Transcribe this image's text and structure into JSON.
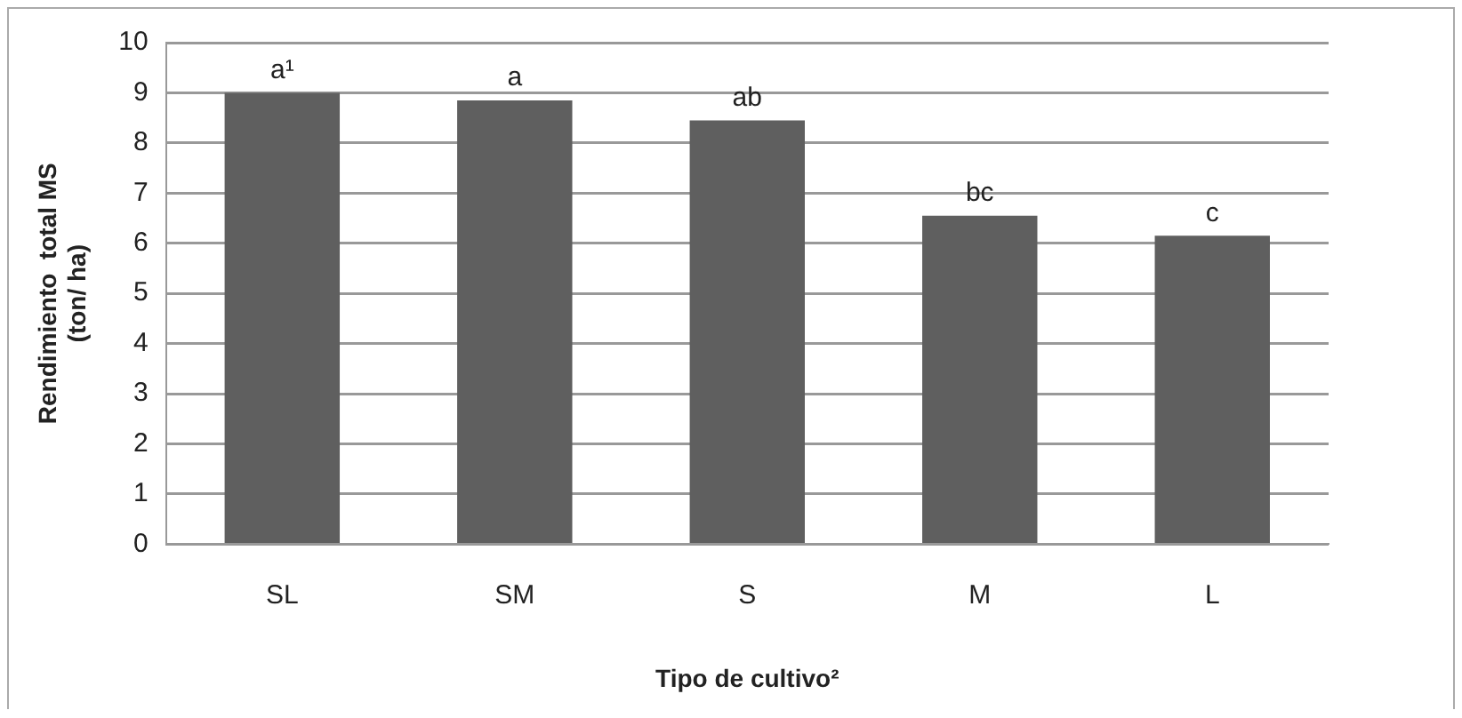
{
  "chart_data": {
    "type": "bar",
    "xlabel": "Tipo de cultivo²",
    "ylabel": "Rendimiento  total MS\n(ton/ ha)",
    "categories": [
      "SL",
      "SM",
      "S",
      "M",
      "L"
    ],
    "values": [
      9.0,
      8.85,
      8.45,
      6.55,
      6.15
    ],
    "color": "#5f5f5f",
    "ylim": [
      0,
      10
    ],
    "yticks": [
      0,
      1,
      2,
      3,
      4,
      5,
      6,
      7,
      8,
      9,
      10
    ],
    "grid": "y",
    "legend": false,
    "annotations": [
      {
        "text": "a¹",
        "x": "SL",
        "y": 9.0
      },
      {
        "text": "a",
        "x": "SM",
        "y": 8.85
      },
      {
        "text": "ab",
        "x": "S",
        "y": 8.45
      },
      {
        "text": "bc",
        "x": "M",
        "y": 6.55
      },
      {
        "text": "c",
        "x": "L",
        "y": 6.15
      }
    ]
  }
}
